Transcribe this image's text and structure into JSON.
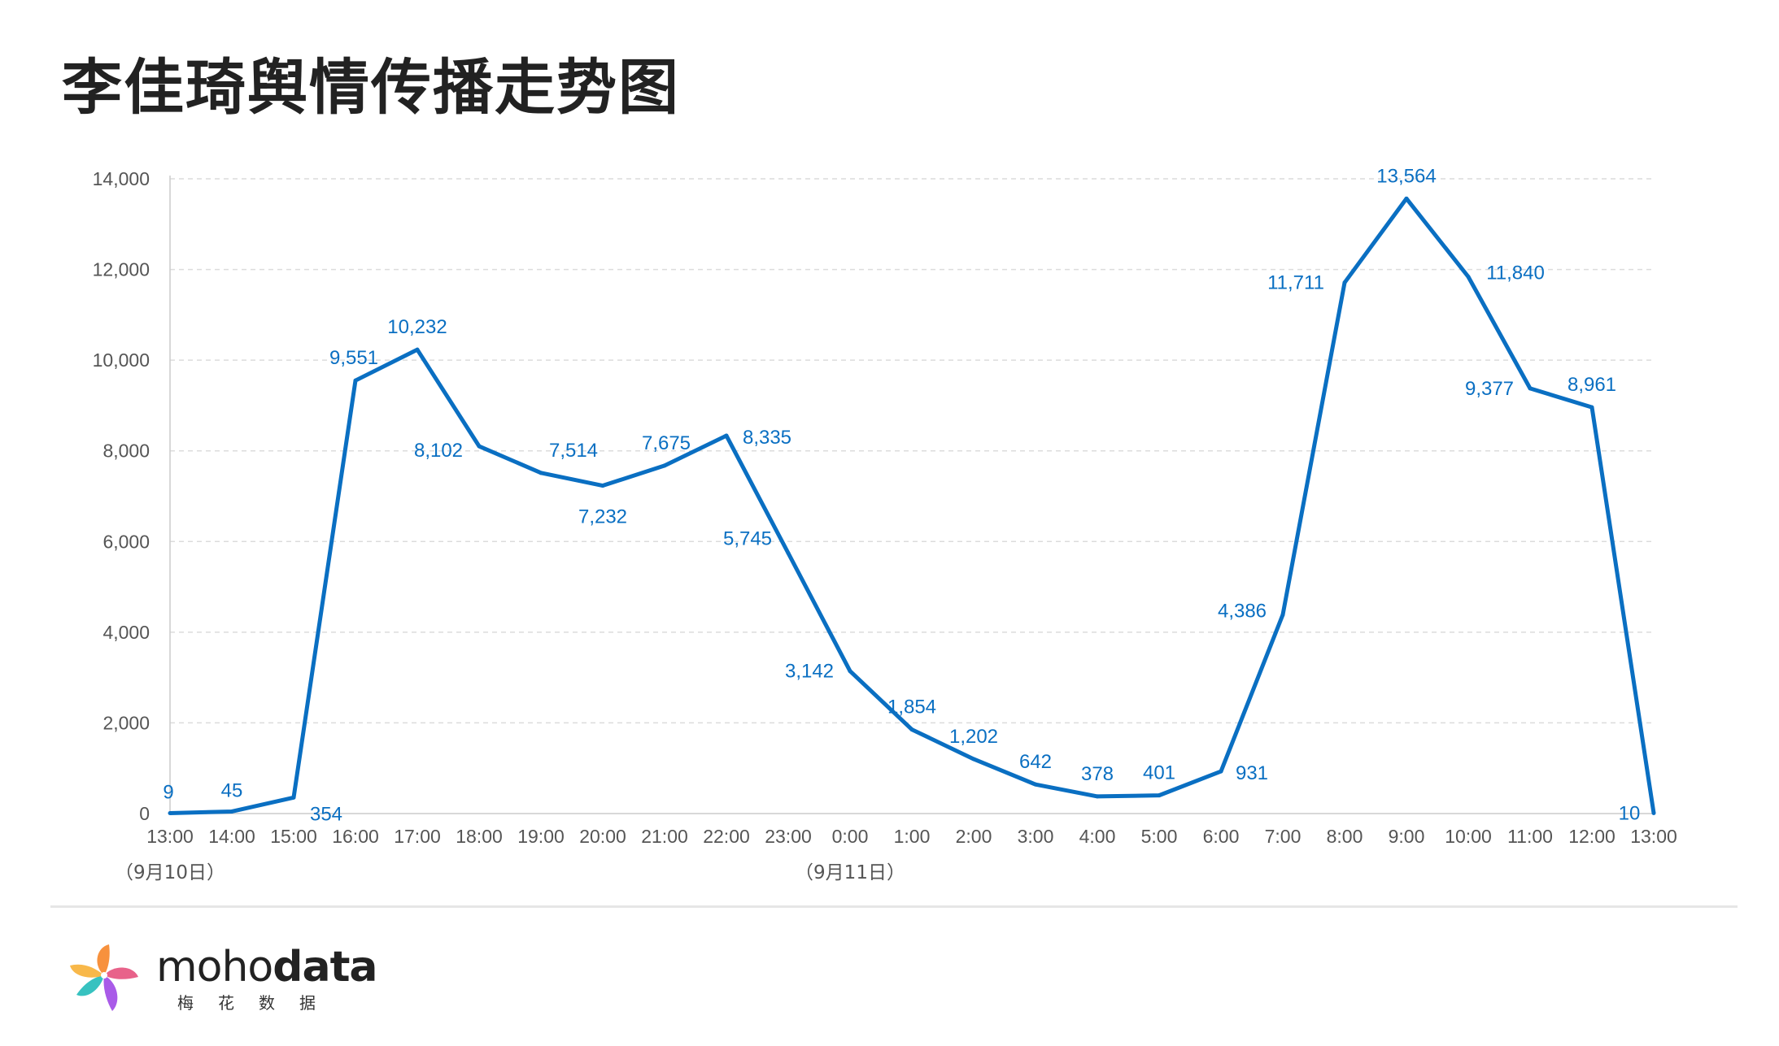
{
  "title": "李佳琦舆情传播走势图",
  "chart_data": {
    "type": "line",
    "title": "李佳琦舆情传播走势图",
    "categories": [
      "13:00",
      "14:00",
      "15:00",
      "16:00",
      "17:00",
      "18:00",
      "19:00",
      "20:00",
      "21:00",
      "22:00",
      "23:00",
      "0:00",
      "1:00",
      "2:00",
      "3:00",
      "4:00",
      "5:00",
      "6:00",
      "7:00",
      "8:00",
      "9:00",
      "10:00",
      "11:00",
      "12:00",
      "13:00"
    ],
    "values": [
      9,
      45,
      354,
      9551,
      10232,
      8102,
      7514,
      7232,
      7675,
      8335,
      5745,
      3142,
      1854,
      1202,
      642,
      378,
      401,
      931,
      4386,
      11711,
      13564,
      11840,
      9377,
      8961,
      10
    ],
    "data_labels": [
      "9",
      "45",
      "354",
      "9,551",
      "10,232",
      "8,102",
      "7,514",
      "7,232",
      "7,675",
      "8,335",
      "5,745",
      "3,142",
      "1,854",
      "1,202",
      "642",
      "378",
      "401",
      "931",
      "4,386",
      "11,711",
      "13,564",
      "11,840",
      "9,377",
      "8,961",
      "10"
    ],
    "y_ticks": [
      "0",
      "2,000",
      "4,000",
      "6,000",
      "8,000",
      "10,000",
      "12,000",
      "14,000"
    ],
    "ylim": [
      0,
      14000
    ],
    "date_labels": [
      "（9月10日）",
      "（9月11日）"
    ],
    "grid": true,
    "line_color": "#0a6fc2",
    "xlabel": "",
    "ylabel": ""
  },
  "footer": {
    "brand_light": "moho",
    "brand_bold": "data",
    "brand_sub": "梅花数据"
  }
}
